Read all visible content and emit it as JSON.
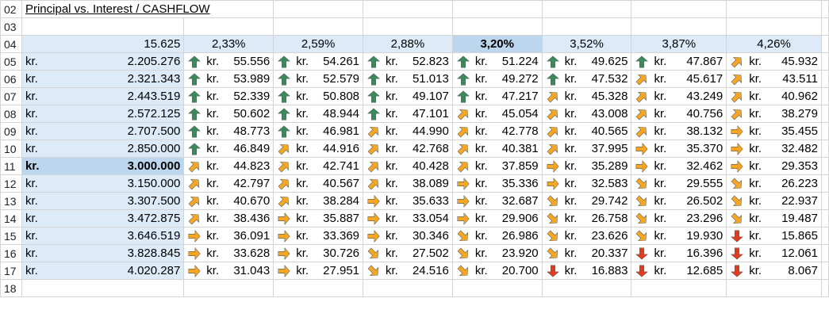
{
  "sheet": {
    "title": "Principal vs.  Interest / CASHFLOW",
    "row_numbers": [
      "02",
      "03",
      "04",
      "05",
      "06",
      "07",
      "08",
      "09",
      "10",
      "11",
      "12",
      "13",
      "14",
      "15",
      "16",
      "17",
      "18"
    ],
    "corner_value": "15.625",
    "currency_prefix": "kr.",
    "selected_rate_index": 3,
    "selected_row_index": 6,
    "colors": {
      "green": "#3a8a5c",
      "orange": "#f5a623",
      "red": "#e03c1f",
      "header_fill": "#dcebf7",
      "selected_fill": "#bcd6ee"
    },
    "rates": [
      "2,33%",
      "2,59%",
      "2,88%",
      "3,20%",
      "3,52%",
      "3,87%",
      "4,26%"
    ],
    "rows": [
      {
        "principal": "2.205.276",
        "payments": [
          [
            "55.556",
            "up"
          ],
          [
            "54.261",
            "up"
          ],
          [
            "52.823",
            "up"
          ],
          [
            "51.224",
            "up"
          ],
          [
            "49.625",
            "up"
          ],
          [
            "47.867",
            "up"
          ],
          [
            "45.932",
            "up-right"
          ]
        ]
      },
      {
        "principal": "2.321.343",
        "payments": [
          [
            "53.989",
            "up"
          ],
          [
            "52.579",
            "up"
          ],
          [
            "51.013",
            "up"
          ],
          [
            "49.272",
            "up"
          ],
          [
            "47.532",
            "up"
          ],
          [
            "45.617",
            "up-right"
          ],
          [
            "43.511",
            "up-right"
          ]
        ]
      },
      {
        "principal": "2.443.519",
        "payments": [
          [
            "52.339",
            "up"
          ],
          [
            "50.808",
            "up"
          ],
          [
            "49.107",
            "up"
          ],
          [
            "47.217",
            "up"
          ],
          [
            "45.328",
            "up-right"
          ],
          [
            "43.249",
            "up-right"
          ],
          [
            "40.962",
            "up-right"
          ]
        ]
      },
      {
        "principal": "2.572.125",
        "payments": [
          [
            "50.602",
            "up"
          ],
          [
            "48.944",
            "up"
          ],
          [
            "47.101",
            "up"
          ],
          [
            "45.054",
            "up-right"
          ],
          [
            "43.008",
            "up-right"
          ],
          [
            "40.756",
            "up-right"
          ],
          [
            "38.279",
            "up-right"
          ]
        ]
      },
      {
        "principal": "2.707.500",
        "payments": [
          [
            "48.773",
            "up"
          ],
          [
            "46.981",
            "up"
          ],
          [
            "44.990",
            "up-right"
          ],
          [
            "42.778",
            "up-right"
          ],
          [
            "40.565",
            "up-right"
          ],
          [
            "38.132",
            "up-right"
          ],
          [
            "35.455",
            "right"
          ]
        ]
      },
      {
        "principal": "2.850.000",
        "payments": [
          [
            "46.849",
            "up"
          ],
          [
            "44.916",
            "up-right"
          ],
          [
            "42.768",
            "up-right"
          ],
          [
            "40.381",
            "up-right"
          ],
          [
            "37.995",
            "up-right"
          ],
          [
            "35.370",
            "right"
          ],
          [
            "32.482",
            "right"
          ]
        ]
      },
      {
        "principal": "3.000.000",
        "payments": [
          [
            "44.823",
            "up-right"
          ],
          [
            "42.741",
            "up-right"
          ],
          [
            "40.428",
            "up-right"
          ],
          [
            "37.859",
            "up-right"
          ],
          [
            "35.289",
            "right"
          ],
          [
            "32.462",
            "right"
          ],
          [
            "29.353",
            "right"
          ]
        ]
      },
      {
        "principal": "3.150.000",
        "payments": [
          [
            "42.797",
            "up-right"
          ],
          [
            "40.567",
            "up-right"
          ],
          [
            "38.089",
            "up-right"
          ],
          [
            "35.336",
            "right"
          ],
          [
            "32.583",
            "right"
          ],
          [
            "29.555",
            "down-right"
          ],
          [
            "26.223",
            "down-right"
          ]
        ]
      },
      {
        "principal": "3.307.500",
        "payments": [
          [
            "40.670",
            "up-right"
          ],
          [
            "38.284",
            "up-right"
          ],
          [
            "35.633",
            "right"
          ],
          [
            "32.687",
            "right"
          ],
          [
            "29.742",
            "down-right"
          ],
          [
            "26.502",
            "down-right"
          ],
          [
            "22.937",
            "down-right"
          ]
        ]
      },
      {
        "principal": "3.472.875",
        "payments": [
          [
            "38.436",
            "up-right"
          ],
          [
            "35.887",
            "right"
          ],
          [
            "33.054",
            "right"
          ],
          [
            "29.906",
            "right"
          ],
          [
            "26.758",
            "down-right"
          ],
          [
            "23.296",
            "down-right"
          ],
          [
            "19.487",
            "down-right"
          ]
        ]
      },
      {
        "principal": "3.646.519",
        "payments": [
          [
            "36.091",
            "right"
          ],
          [
            "33.369",
            "right"
          ],
          [
            "30.346",
            "right"
          ],
          [
            "26.986",
            "down-right"
          ],
          [
            "23.626",
            "down-right"
          ],
          [
            "19.930",
            "down-right"
          ],
          [
            "15.865",
            "down"
          ]
        ]
      },
      {
        "principal": "3.828.845",
        "payments": [
          [
            "33.628",
            "right"
          ],
          [
            "30.726",
            "right"
          ],
          [
            "27.502",
            "down-right"
          ],
          [
            "23.920",
            "down-right"
          ],
          [
            "20.337",
            "down-right"
          ],
          [
            "16.396",
            "down"
          ],
          [
            "12.061",
            "down"
          ]
        ]
      },
      {
        "principal": "4.020.287",
        "payments": [
          [
            "31.043",
            "right"
          ],
          [
            "27.951",
            "right"
          ],
          [
            "24.516",
            "down-right"
          ],
          [
            "20.700",
            "down-right"
          ],
          [
            "16.883",
            "down"
          ],
          [
            "12.685",
            "down"
          ],
          [
            "8.067",
            "down"
          ]
        ]
      }
    ]
  }
}
